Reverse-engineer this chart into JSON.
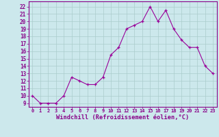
{
  "x": [
    0,
    1,
    2,
    3,
    4,
    5,
    6,
    7,
    8,
    9,
    10,
    11,
    12,
    13,
    14,
    15,
    16,
    17,
    18,
    19,
    20,
    21,
    22,
    23
  ],
  "y": [
    10,
    9,
    9,
    9,
    10,
    12.5,
    12,
    11.5,
    11.5,
    12.5,
    15.5,
    16.5,
    19,
    19.5,
    20,
    22,
    20,
    21.5,
    19,
    17.5,
    16.5,
    16.5,
    14,
    13
  ],
  "line_color": "#990099",
  "marker_color": "#990099",
  "bg_color": "#cce8ec",
  "grid_color": "#aacccc",
  "xlabel": "Windchill (Refroidissement éolien,°C)",
  "ylabel_ticks": [
    9,
    10,
    11,
    12,
    13,
    14,
    15,
    16,
    17,
    18,
    19,
    20,
    21,
    22
  ],
  "ylim": [
    8.5,
    22.7
  ],
  "xlim": [
    -0.5,
    23.5
  ],
  "xtick_labels": [
    "0",
    "1",
    "2",
    "3",
    "4",
    "5",
    "6",
    "7",
    "8",
    "9",
    "10",
    "11",
    "12",
    "13",
    "14",
    "15",
    "16",
    "17",
    "18",
    "19",
    "20",
    "21",
    "22",
    "23"
  ],
  "tick_label_color": "#880088",
  "axis_label_color": "#880088"
}
